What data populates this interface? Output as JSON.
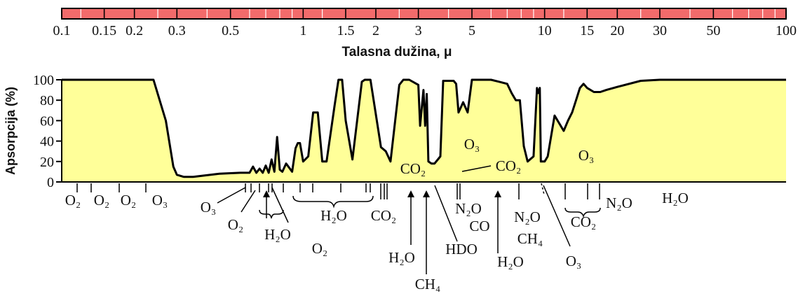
{
  "chart_data": {
    "type": "area",
    "title": "",
    "xlabel": "Talasna dužina, μ",
    "ylabel": "Apsorpcija (%)",
    "x_scale": "log",
    "xlim": [
      0.1,
      100
    ],
    "ylim": [
      0,
      100
    ],
    "x_ticks": [
      "0.1",
      "0.15",
      "0.2",
      "0.3",
      "0.5",
      "1",
      "1.5",
      "2",
      "3",
      "5",
      "10",
      "15",
      "20",
      "30",
      "50",
      "100"
    ],
    "x_tick_values": [
      0.1,
      0.15,
      0.2,
      0.3,
      0.5,
      1,
      1.5,
      2,
      3,
      5,
      10,
      15,
      20,
      30,
      50,
      100
    ],
    "y_ticks": [
      "0",
      "20",
      "40",
      "60",
      "80",
      "100"
    ],
    "y_tick_values": [
      0,
      20,
      40,
      60,
      80,
      100
    ],
    "fill_color": "#ffff99",
    "scale_bar_color": "#f26b6b",
    "series": [
      {
        "x": [
          0.1,
          0.2,
          0.24,
          0.27,
          0.29,
          0.3,
          0.32,
          0.35,
          0.45,
          0.55,
          0.6,
          0.62,
          0.64,
          0.66,
          0.68,
          0.7,
          0.72,
          0.74,
          0.76,
          0.78,
          0.8,
          0.82,
          0.85,
          0.9,
          0.93,
          0.95,
          0.97,
          1.0,
          1.05,
          1.1,
          1.15,
          1.2,
          1.25,
          1.35,
          1.4,
          1.45,
          1.5,
          1.6,
          1.75,
          1.8,
          1.85,
          1.9,
          2.1,
          2.2,
          2.3,
          2.5,
          2.6,
          2.65,
          2.75,
          3.0,
          3.05,
          3.15,
          3.2,
          3.25,
          3.3,
          3.4,
          3.5,
          3.7,
          3.8,
          4.0,
          4.2,
          4.3,
          4.4,
          4.6,
          4.8,
          5.0,
          5.2,
          6.0,
          6.5,
          7.0,
          7.3,
          7.6,
          7.9,
          8.2,
          8.5,
          9.0,
          9.3,
          9.4,
          9.55,
          9.65,
          9.8,
          10.0,
          10.3,
          11.0,
          12.0,
          12.5,
          13.0,
          13.5,
          14.0,
          14.5,
          15.0,
          16.0,
          17.0,
          18.0,
          20.0,
          25.0,
          30.0,
          40.0,
          100.0
        ],
        "y": [
          100,
          100,
          100,
          60,
          15,
          7,
          5,
          5,
          8,
          9,
          9,
          15,
          9,
          13,
          9,
          16,
          9,
          22,
          10,
          44,
          12,
          10,
          18,
          10,
          33,
          38,
          38,
          20,
          25,
          68,
          68,
          20,
          20,
          75,
          100,
          100,
          60,
          22,
          98,
          100,
          100,
          100,
          34,
          30,
          20,
          95,
          100,
          100,
          100,
          95,
          55,
          90,
          55,
          86,
          20,
          18,
          18,
          25,
          99,
          99,
          99,
          96,
          68,
          78,
          68,
          100,
          100,
          100,
          98,
          96,
          87,
          80,
          80,
          35,
          20,
          25,
          92,
          87,
          92,
          20,
          20,
          20,
          25,
          65,
          50,
          60,
          68,
          80,
          92,
          96,
          92,
          88,
          88,
          90,
          93,
          99,
          100,
          100,
          100
        ]
      }
    ],
    "molecule_labels": [
      "O₂",
      "O₂",
      "O₂",
      "O₃",
      "O₃",
      "O₂",
      "H₂O",
      "O₂",
      "H₂O",
      "CO₂",
      "CO₂",
      "H₂O",
      "CH₄",
      "HDO",
      "O₃",
      "CO₂",
      "N₂O",
      "CO",
      "H₂O",
      "N₂O",
      "CH₄",
      "O₃",
      "O₃",
      "CO₂",
      "N₂O",
      "H₂O"
    ]
  }
}
